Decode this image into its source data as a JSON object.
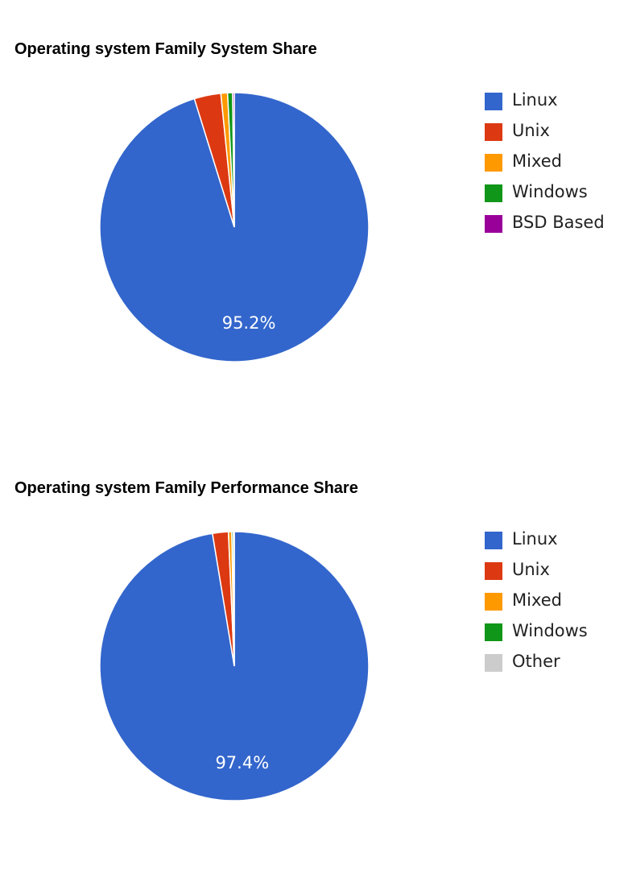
{
  "chart_data": [
    {
      "type": "pie",
      "title": "Operating system Family System Share",
      "categories": [
        "Linux",
        "Unix",
        "Mixed",
        "Windows",
        "BSD Based"
      ],
      "values": [
        95.2,
        3.2,
        0.8,
        0.6,
        0.2
      ],
      "colors": [
        "#3366cc",
        "#dc3912",
        "#ff9900",
        "#109618",
        "#990099"
      ],
      "slice_label": "95.2%",
      "legend_position": "right"
    },
    {
      "type": "pie",
      "title": "Operating system Family Performance Share",
      "categories": [
        "Linux",
        "Unix",
        "Mixed",
        "Windows",
        "Other"
      ],
      "values": [
        97.4,
        1.9,
        0.4,
        0.2,
        0.1
      ],
      "colors": [
        "#3366cc",
        "#dc3912",
        "#ff9900",
        "#109618",
        "#cccccc"
      ],
      "slice_label": "97.4%",
      "legend_position": "right"
    }
  ]
}
